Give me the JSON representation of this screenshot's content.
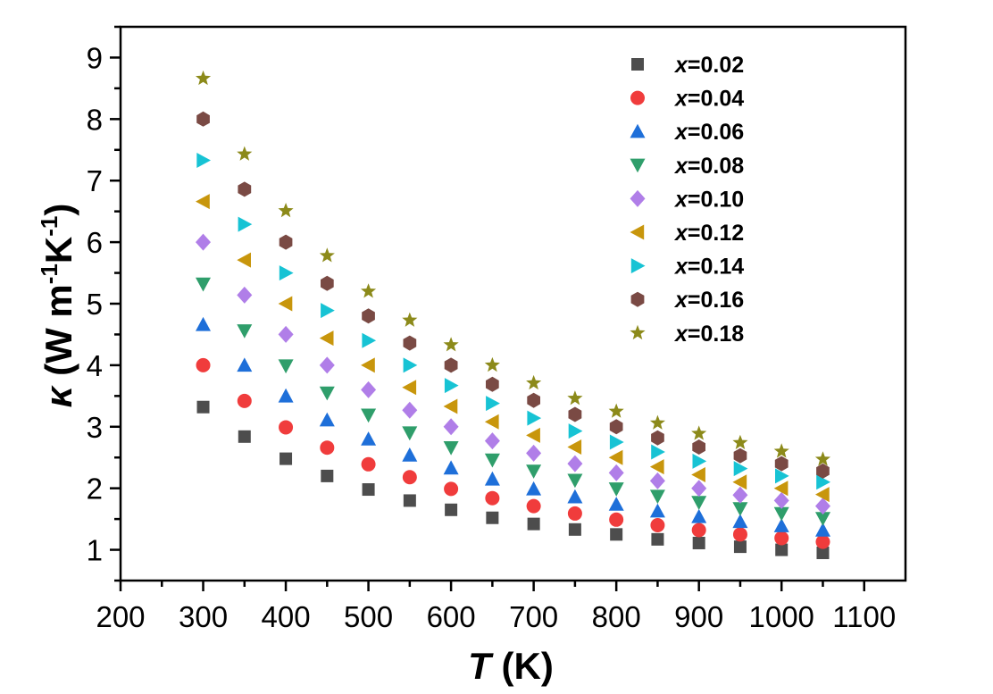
{
  "chart_data": {
    "type": "scatter",
    "title": "",
    "xlabel_var": "T",
    "xlabel_unit": " (K)",
    "ylabel_var": "κ",
    "ylabel_unit_parts": [
      " (W m",
      "-1",
      "K",
      "-1",
      ")"
    ],
    "xlim": [
      200,
      1150
    ],
    "ylim": [
      0.5,
      9.5
    ],
    "xticks": [
      200,
      300,
      400,
      500,
      600,
      700,
      800,
      900,
      1000,
      1100
    ],
    "yticks": [
      1,
      2,
      3,
      4,
      5,
      6,
      7,
      8,
      9
    ],
    "x": [
      300,
      350,
      400,
      450,
      500,
      550,
      600,
      650,
      700,
      750,
      800,
      850,
      900,
      950,
      1000,
      1050
    ],
    "legend_position": "top-right",
    "legend_var": "x",
    "series": [
      {
        "name": "=0.02",
        "marker": "square",
        "color": "#4d4d4d",
        "values": [
          3.32,
          2.84,
          2.48,
          2.2,
          1.98,
          1.8,
          1.65,
          1.52,
          1.42,
          1.33,
          1.25,
          1.17,
          1.11,
          1.05,
          1.0,
          0.95
        ]
      },
      {
        "name": "=0.04",
        "marker": "circle",
        "color": "#f03c3c",
        "values": [
          4.0,
          3.42,
          2.99,
          2.66,
          2.39,
          2.18,
          1.99,
          1.84,
          1.71,
          1.59,
          1.49,
          1.4,
          1.32,
          1.25,
          1.19,
          1.13
        ]
      },
      {
        "name": "=0.06",
        "marker": "triangle-up",
        "color": "#1e6fd9",
        "values": [
          4.66,
          4.0,
          3.5,
          3.11,
          2.8,
          2.54,
          2.33,
          2.15,
          1.99,
          1.86,
          1.74,
          1.63,
          1.54,
          1.46,
          1.39,
          1.32
        ]
      },
      {
        "name": "=0.08",
        "marker": "triangle-down",
        "color": "#2f9e6b",
        "values": [
          5.32,
          4.56,
          3.99,
          3.55,
          3.19,
          2.9,
          2.66,
          2.46,
          2.28,
          2.13,
          1.99,
          1.87,
          1.77,
          1.67,
          1.59,
          1.51
        ]
      },
      {
        "name": "=0.10",
        "marker": "diamond",
        "color": "#b07ee8",
        "values": [
          6.0,
          5.14,
          4.5,
          4.0,
          3.6,
          3.27,
          3.0,
          2.77,
          2.57,
          2.4,
          2.25,
          2.12,
          2.0,
          1.89,
          1.8,
          1.71
        ]
      },
      {
        "name": "=0.12",
        "marker": "triangle-left",
        "color": "#c8960c",
        "values": [
          6.66,
          5.71,
          5.0,
          4.44,
          4.0,
          3.64,
          3.33,
          3.08,
          2.86,
          2.67,
          2.5,
          2.35,
          2.22,
          2.1,
          2.0,
          1.9
        ]
      },
      {
        "name": "=0.14",
        "marker": "triangle-right",
        "color": "#17c3d4",
        "values": [
          7.33,
          6.29,
          5.5,
          4.89,
          4.4,
          4.0,
          3.67,
          3.38,
          3.14,
          2.93,
          2.75,
          2.59,
          2.44,
          2.32,
          2.2,
          2.1
        ]
      },
      {
        "name": "=0.16",
        "marker": "hexagon",
        "color": "#7a4a44",
        "values": [
          8.0,
          6.86,
          6.0,
          5.33,
          4.8,
          4.36,
          4.0,
          3.69,
          3.43,
          3.2,
          3.0,
          2.82,
          2.67,
          2.53,
          2.4,
          2.28
        ]
      },
      {
        "name": "=0.18",
        "marker": "star",
        "color": "#8c8a1a",
        "values": [
          8.66,
          7.43,
          6.51,
          5.78,
          5.2,
          4.73,
          4.33,
          4.0,
          3.71,
          3.46,
          3.25,
          3.06,
          2.89,
          2.74,
          2.6,
          2.47
        ]
      }
    ]
  }
}
